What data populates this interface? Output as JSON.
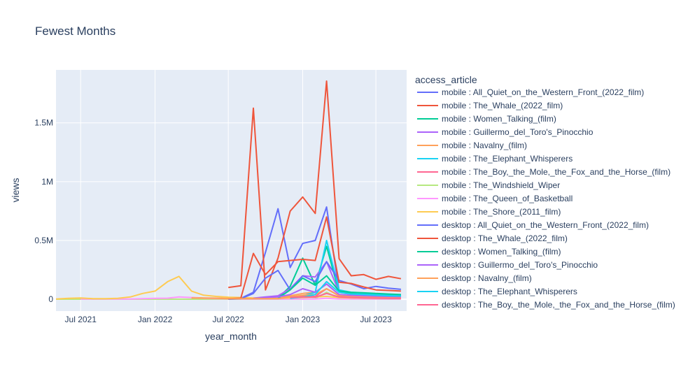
{
  "chart_data": {
    "type": "line",
    "title": "Fewest Months",
    "xlabel": "year_month",
    "ylabel": "views",
    "legend_title": "access_article",
    "legend_position": "right",
    "grid": true,
    "xlim": [
      "2021-05-01",
      "2023-09-15"
    ],
    "ylim": [
      -100000,
      1950000
    ],
    "x_ticks": [
      {
        "value": "2021-07-01",
        "label": "Jul 2021"
      },
      {
        "value": "2022-01-01",
        "label": "Jan 2022"
      },
      {
        "value": "2022-07-01",
        "label": "Jul 2022"
      },
      {
        "value": "2023-01-01",
        "label": "Jan 2023"
      },
      {
        "value": "2023-07-01",
        "label": "Jul 2023"
      }
    ],
    "y_ticks": [
      {
        "value": 0,
        "label": "0"
      },
      {
        "value": 500000,
        "label": "0.5M"
      },
      {
        "value": 1000000,
        "label": "1M"
      },
      {
        "value": 1500000,
        "label": "1.5M"
      }
    ],
    "series": [
      {
        "name": "mobile : All_Quiet_on_the_Western_Front_(2022_film)",
        "color": "#636efa",
        "x": [
          "2022-07-01",
          "2022-08-01",
          "2022-09-01",
          "2022-10-01",
          "2022-11-01",
          "2022-12-01",
          "2023-01-01",
          "2023-02-01",
          "2023-03-01",
          "2023-04-01",
          "2023-05-01",
          "2023-06-01",
          "2023-07-01",
          "2023-08-01",
          "2023-09-01"
        ],
        "y": [
          2000,
          8000,
          60000,
          400000,
          770000,
          270000,
          475000,
          500000,
          785000,
          70000,
          55000,
          50000,
          45000,
          40000,
          38000
        ]
      },
      {
        "name": "mobile : The_Whale_(2022_film)",
        "color": "#EF553B",
        "x": [
          "2022-07-01",
          "2022-08-01",
          "2022-09-01",
          "2022-10-01",
          "2022-11-01",
          "2022-12-01",
          "2023-01-01",
          "2023-02-01",
          "2023-03-01",
          "2023-04-01",
          "2023-05-01",
          "2023-06-01",
          "2023-07-01",
          "2023-08-01",
          "2023-09-01"
        ],
        "y": [
          100000,
          115000,
          1625000,
          80000,
          350000,
          750000,
          870000,
          730000,
          1855000,
          345000,
          200000,
          210000,
          170000,
          195000,
          175000
        ]
      },
      {
        "name": "mobile : Women_Talking_(film)",
        "color": "#00cc96",
        "x": [
          "2022-11-01",
          "2022-12-01",
          "2023-01-01",
          "2023-02-01",
          "2023-03-01",
          "2023-04-01",
          "2023-05-01",
          "2023-06-01",
          "2023-07-01",
          "2023-08-01",
          "2023-09-01"
        ],
        "y": [
          10000,
          110000,
          350000,
          120000,
          450000,
          60000,
          50000,
          45000,
          40000,
          35000,
          30000
        ]
      },
      {
        "name": "mobile : Guillermo_del_Toro's_Pinocchio",
        "color": "#ab63fa",
        "x": [
          "2022-09-01",
          "2022-10-01",
          "2022-11-01",
          "2022-12-01",
          "2023-01-01",
          "2023-02-01",
          "2023-03-01",
          "2023-04-01",
          "2023-05-01",
          "2023-06-01",
          "2023-07-01",
          "2023-08-01",
          "2023-09-01"
        ],
        "y": [
          10000,
          20000,
          30000,
          90000,
          200000,
          190000,
          320000,
          60000,
          40000,
          35000,
          30000,
          28000,
          25000
        ]
      },
      {
        "name": "mobile : Navalny_(film)",
        "color": "#FFA15A",
        "x": [
          "2022-04-01",
          "2022-05-01",
          "2022-06-01",
          "2022-07-01",
          "2022-08-01",
          "2022-09-01",
          "2022-10-01",
          "2022-11-01",
          "2022-12-01",
          "2023-01-01",
          "2023-02-01",
          "2023-03-01",
          "2023-04-01",
          "2023-05-01",
          "2023-06-01",
          "2023-07-01",
          "2023-08-01",
          "2023-09-01"
        ],
        "y": [
          15000,
          12000,
          10000,
          8000,
          7000,
          6000,
          6000,
          8000,
          30000,
          50000,
          60000,
          130000,
          40000,
          30000,
          25000,
          20000,
          18000,
          15000
        ]
      },
      {
        "name": "mobile : The_Elephant_Whisperers",
        "color": "#19d3f3",
        "x": [
          "2022-12-01",
          "2023-01-01",
          "2023-02-01",
          "2023-03-01",
          "2023-04-01",
          "2023-05-01",
          "2023-06-01",
          "2023-07-01",
          "2023-08-01",
          "2023-09-01"
        ],
        "y": [
          10000,
          30000,
          60000,
          500000,
          80000,
          60000,
          50000,
          40000,
          35000,
          30000
        ]
      },
      {
        "name": "mobile : The_Boy,_the_Mole,_the_Fox_and_the_Horse_(film)",
        "color": "#FF6692",
        "x": [
          "2022-12-01",
          "2023-01-01",
          "2023-02-01",
          "2023-03-01",
          "2023-04-01",
          "2023-05-01",
          "2023-06-01",
          "2023-07-01",
          "2023-08-01",
          "2023-09-01"
        ],
        "y": [
          20000,
          30000,
          25000,
          90000,
          30000,
          20000,
          15000,
          12000,
          10000,
          9000
        ]
      },
      {
        "name": "mobile : The_Windshield_Wiper",
        "color": "#B6E880",
        "x": [
          "2021-05-01",
          "2021-06-01",
          "2021-07-01",
          "2021-08-01",
          "2021-09-01",
          "2021-10-01",
          "2021-11-01",
          "2021-12-01",
          "2022-01-01",
          "2022-02-01",
          "2022-03-01",
          "2022-04-01",
          "2022-05-01",
          "2022-06-01",
          "2022-07-01",
          "2022-08-01",
          "2022-09-01",
          "2022-10-01",
          "2022-11-01",
          "2022-12-01",
          "2023-01-01",
          "2023-02-01",
          "2023-03-01",
          "2023-04-01",
          "2023-05-01",
          "2023-06-01",
          "2023-07-01",
          "2023-08-01",
          "2023-09-01"
        ],
        "y": [
          1000,
          1000,
          1000,
          1000,
          1000,
          1000,
          1000,
          1000,
          1000,
          1000,
          1000,
          1000,
          1000,
          1000,
          1000,
          1000,
          1000,
          1000,
          1000,
          2000,
          3000,
          5000,
          60000,
          8000,
          3000,
          2000,
          1500,
          1000,
          1000
        ]
      },
      {
        "name": "mobile : The_Queen_of_Basketball",
        "color": "#FF97FF",
        "x": [
          "2021-07-01",
          "2021-08-01",
          "2021-09-01",
          "2021-10-01",
          "2021-11-01",
          "2021-12-01",
          "2022-01-01",
          "2022-02-01",
          "2022-03-01",
          "2022-04-01",
          "2022-05-01",
          "2022-06-01",
          "2022-07-01",
          "2022-08-01",
          "2022-09-01",
          "2022-10-01",
          "2022-11-01",
          "2022-12-01",
          "2023-01-01",
          "2023-02-01",
          "2023-03-01",
          "2023-04-01",
          "2023-05-01",
          "2023-06-01",
          "2023-07-01",
          "2023-08-01",
          "2023-09-01"
        ],
        "y": [
          2000,
          2000,
          3000,
          3000,
          3000,
          5000,
          8000,
          10000,
          20000,
          15000,
          8000,
          5000,
          4000,
          3000,
          3000,
          3000,
          3000,
          3000,
          3000,
          3000,
          8000,
          3000,
          2000,
          2000,
          2000,
          2000,
          2000
        ]
      },
      {
        "name": "mobile : The_Shore_(2011_film)",
        "color": "#FECB52",
        "x": [
          "2021-05-01",
          "2021-06-01",
          "2021-07-01",
          "2021-08-01",
          "2021-09-01",
          "2021-10-01",
          "2021-11-01",
          "2021-12-01",
          "2022-01-01",
          "2022-02-01",
          "2022-03-01",
          "2022-04-01",
          "2022-05-01",
          "2022-06-01",
          "2022-07-01",
          "2022-08-01",
          "2022-09-01",
          "2022-10-01",
          "2022-11-01",
          "2022-12-01",
          "2023-01-01",
          "2023-02-01",
          "2023-03-01",
          "2023-04-01",
          "2023-05-01",
          "2023-06-01",
          "2023-07-01",
          "2023-08-01",
          "2023-09-01"
        ],
        "y": [
          3000,
          8000,
          12000,
          5000,
          6000,
          8000,
          20000,
          50000,
          70000,
          150000,
          195000,
          70000,
          35000,
          25000,
          18000,
          15000,
          12000,
          12000,
          10000,
          12000,
          15000,
          20000,
          25000,
          15000,
          12000,
          10000,
          9000,
          8000,
          8000
        ]
      },
      {
        "name": "desktop : All_Quiet_on_the_Western_Front_(2022_film)",
        "color": "#636efa",
        "x": [
          "2022-07-01",
          "2022-08-01",
          "2022-09-01",
          "2022-10-01",
          "2022-11-01",
          "2022-12-01",
          "2023-01-01",
          "2023-02-01",
          "2023-03-01",
          "2023-04-01",
          "2023-05-01",
          "2023-06-01",
          "2023-07-01",
          "2023-08-01",
          "2023-09-01"
        ],
        "y": [
          1000,
          5000,
          50000,
          180000,
          245000,
          80000,
          200000,
          150000,
          320000,
          160000,
          130000,
          90000,
          110000,
          95000,
          85000
        ]
      },
      {
        "name": "desktop : The_Whale_(2022_film)",
        "color": "#EF553B",
        "x": [
          "2022-07-01",
          "2022-08-01",
          "2022-09-01",
          "2022-10-01",
          "2022-11-01",
          "2022-12-01",
          "2023-01-01",
          "2023-02-01",
          "2023-03-01",
          "2023-04-01",
          "2023-05-01",
          "2023-06-01",
          "2023-07-01",
          "2023-08-01",
          "2023-09-01"
        ],
        "y": [
          5000,
          10000,
          390000,
          210000,
          320000,
          330000,
          340000,
          330000,
          700000,
          145000,
          135000,
          105000,
          80000,
          75000,
          70000
        ]
      },
      {
        "name": "desktop : Women_Talking_(film)",
        "color": "#00cc96",
        "x": [
          "2022-11-01",
          "2022-12-01",
          "2023-01-01",
          "2023-02-01",
          "2023-03-01",
          "2023-04-01",
          "2023-05-01",
          "2023-06-01",
          "2023-07-01",
          "2023-08-01",
          "2023-09-01"
        ],
        "y": [
          8000,
          80000,
          180000,
          120000,
          200000,
          70000,
          60000,
          55000,
          50000,
          45000,
          40000
        ]
      },
      {
        "name": "desktop : Guillermo_del_Toro's_Pinocchio",
        "color": "#ab63fa",
        "x": [
          "2022-09-01",
          "2022-10-01",
          "2022-11-01",
          "2022-12-01",
          "2023-01-01",
          "2023-02-01",
          "2023-03-01",
          "2023-04-01",
          "2023-05-01",
          "2023-06-01",
          "2023-07-01",
          "2023-08-01",
          "2023-09-01"
        ],
        "y": [
          8000,
          15000,
          20000,
          40000,
          90000,
          60000,
          130000,
          40000,
          30000,
          25000,
          22000,
          20000,
          18000
        ]
      },
      {
        "name": "desktop : Navalny_(film)",
        "color": "#FFA15A",
        "x": [
          "2022-04-01",
          "2022-05-01",
          "2022-06-01",
          "2022-07-01",
          "2022-08-01",
          "2022-09-01",
          "2022-10-01",
          "2022-11-01",
          "2022-12-01",
          "2023-01-01",
          "2023-02-01",
          "2023-03-01",
          "2023-04-01",
          "2023-05-01",
          "2023-06-01",
          "2023-07-01",
          "2023-08-01",
          "2023-09-01"
        ],
        "y": [
          12000,
          10000,
          8000,
          6000,
          5000,
          5000,
          5000,
          6000,
          20000,
          35000,
          40000,
          90000,
          30000,
          22000,
          18000,
          15000,
          13000,
          12000
        ]
      },
      {
        "name": "desktop : The_Elephant_Whisperers",
        "color": "#19d3f3",
        "x": [
          "2022-12-01",
          "2023-01-01",
          "2023-02-01",
          "2023-03-01",
          "2023-04-01",
          "2023-05-01",
          "2023-06-01",
          "2023-07-01",
          "2023-08-01",
          "2023-09-01"
        ],
        "y": [
          8000,
          20000,
          40000,
          150000,
          60000,
          45000,
          40000,
          35000,
          30000,
          28000
        ]
      },
      {
        "name": "desktop : The_Boy,_the_Mole,_the_Fox_and_the_Horse_(film)",
        "color": "#FF6692",
        "x": [
          "2022-12-01",
          "2023-01-01",
          "2023-02-01",
          "2023-03-01",
          "2023-04-01",
          "2023-05-01",
          "2023-06-01",
          "2023-07-01",
          "2023-08-01",
          "2023-09-01"
        ],
        "y": [
          15000,
          20000,
          18000,
          50000,
          20000,
          15000,
          12000,
          10000,
          9000,
          8000
        ]
      }
    ]
  }
}
